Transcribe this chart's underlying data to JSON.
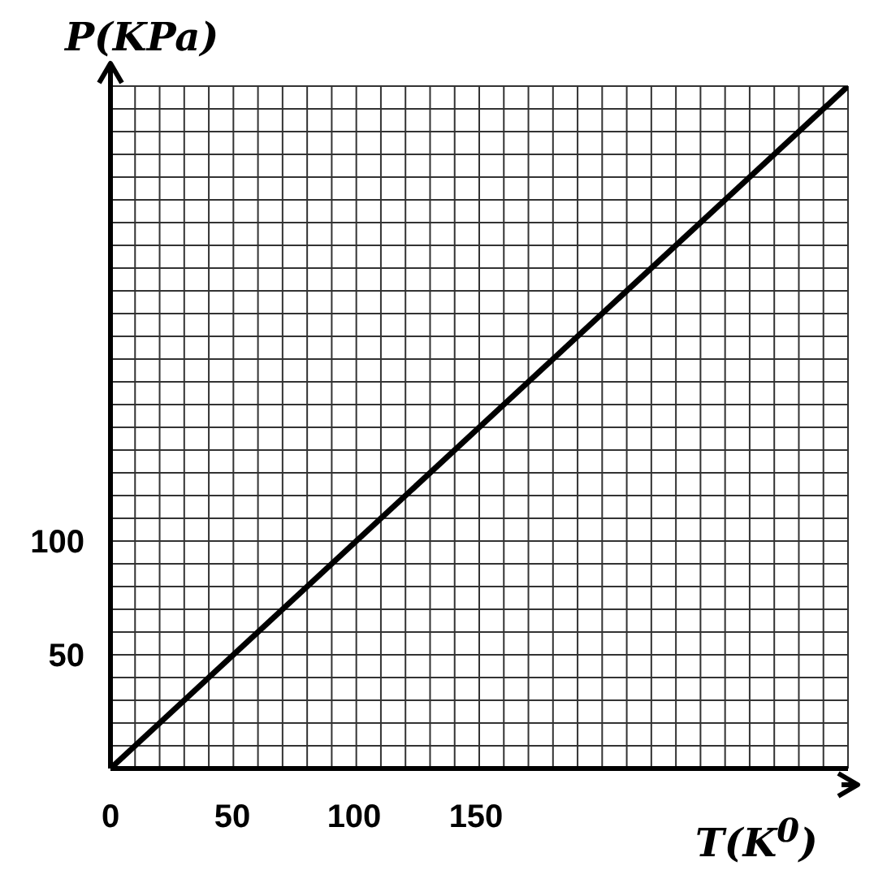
{
  "chart_data": {
    "type": "line",
    "ylabel": "P(KPa)",
    "xlabel": "T(K$^{0}$)",
    "x": [
      0,
      300
    ],
    "series": [
      {
        "color": "#000000",
        "values": [
          0,
          300
        ]
      }
    ],
    "xlim": [
      0,
      300
    ],
    "ylim": [
      0,
      300
    ],
    "xticks": [
      0,
      {
        "value": 10,
        "label": null
      },
      {
        "value": 20,
        "label": null
      },
      {
        "value": 30,
        "label": null
      },
      {
        "value": 40,
        "label": null
      },
      50,
      {
        "value": 60,
        "label": null
      },
      {
        "value": 70,
        "label": null
      },
      {
        "value": 80,
        "label": null
      },
      {
        "value": 90,
        "label": null
      },
      100,
      {
        "value": 110,
        "label": null
      },
      {
        "value": 120,
        "label": null
      },
      {
        "value": 130,
        "label": null
      },
      {
        "value": 140,
        "label": null
      },
      150,
      {
        "value": 160,
        "label": null
      },
      {
        "value": 170,
        "label": null
      },
      {
        "value": 180,
        "label": null
      },
      {
        "value": 190,
        "label": null
      },
      {
        "value": 200,
        "label": null
      },
      {
        "value": 210,
        "label": null
      },
      {
        "value": 220,
        "label": null
      },
      {
        "value": 230,
        "label": null
      },
      {
        "value": 240,
        "label": null
      },
      {
        "value": 250,
        "label": null
      },
      {
        "value": 260,
        "label": null
      },
      {
        "value": 270,
        "label": null
      },
      {
        "value": 280,
        "label": null
      },
      {
        "value": 290,
        "label": null
      },
      {
        "value": 300,
        "label": null
      }
    ],
    "yticks": [
      {
        "value": 0,
        "label": null
      },
      {
        "value": 10,
        "label": null
      },
      {
        "value": 20,
        "label": null
      },
      {
        "value": 30,
        "label": null
      },
      {
        "value": 40,
        "label": null
      },
      50,
      {
        "value": 60,
        "label": null
      },
      {
        "value": 70,
        "label": null
      },
      {
        "value": 80,
        "label": null
      },
      {
        "value": 90,
        "label": null
      },
      100,
      {
        "value": 110,
        "label": null
      },
      {
        "value": 120,
        "label": null
      },
      {
        "value": 130,
        "label": null
      },
      {
        "value": 140,
        "label": null
      },
      {
        "value": 150,
        "label": null
      },
      {
        "value": 160,
        "label": null
      },
      {
        "value": 170,
        "label": null
      },
      {
        "value": 180,
        "label": null
      },
      {
        "value": 190,
        "label": null
      },
      {
        "value": 200,
        "label": null
      },
      {
        "value": 210,
        "label": null
      },
      {
        "value": 220,
        "label": null
      },
      {
        "value": 230,
        "label": null
      },
      {
        "value": 240,
        "label": null
      },
      {
        "value": 250,
        "label": null
      },
      {
        "value": 260,
        "label": null
      },
      {
        "value": 270,
        "label": null
      },
      {
        "value": 280,
        "label": null
      },
      {
        "value": 290,
        "label": null
      },
      {
        "value": 300,
        "label": null
      }
    ],
    "grid": true,
    "marker": "none",
    "line_style": "solid"
  }
}
